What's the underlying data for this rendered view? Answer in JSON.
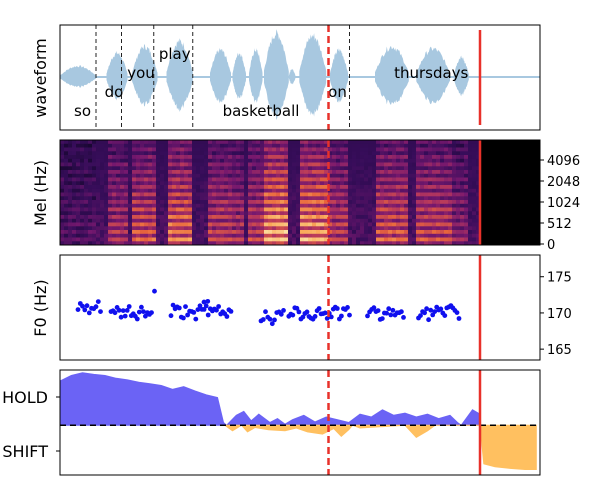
{
  "colors": {
    "waveform": "#a8c8e0",
    "vline_red": "#e8312a",
    "f0_points": "#1010ee",
    "hold_fill": "#6b63f5",
    "shift_fill": "#ffc060",
    "frame": "#000000"
  },
  "words": [
    {
      "text": "so",
      "start": 0.0,
      "end": 0.55
    },
    {
      "text": "do",
      "start": 0.55,
      "end": 0.9
    },
    {
      "text": "you",
      "start": 0.9,
      "end": 1.3
    },
    {
      "text": "play",
      "start": 1.3,
      "end": 1.8
    },
    {
      "text": "basketball",
      "start": 1.8,
      "end": 3.55
    },
    {
      "text": "on",
      "start": 3.55,
      "end": 3.9
    },
    {
      "text": "thursdays",
      "start": 3.9,
      "end": 5.5
    }
  ],
  "chart_data": [
    {
      "type": "line",
      "panel": "waveform",
      "ylabel": "waveform",
      "xlim": [
        0,
        6.4
      ],
      "segments": [
        {
          "start": 0.0,
          "end": 0.48,
          "amp": 0.25
        },
        {
          "start": 0.62,
          "end": 0.9,
          "amp": 0.55
        },
        {
          "start": 0.96,
          "end": 1.3,
          "amp": 0.7
        },
        {
          "start": 1.42,
          "end": 1.77,
          "amp": 0.82
        },
        {
          "start": 2.0,
          "end": 2.28,
          "amp": 0.62
        },
        {
          "start": 2.3,
          "end": 2.48,
          "amp": 0.55
        },
        {
          "start": 2.52,
          "end": 2.7,
          "amp": 0.62
        },
        {
          "start": 2.72,
          "end": 3.05,
          "amp": 1.0
        },
        {
          "start": 3.05,
          "end": 3.14,
          "amp": 0.18
        },
        {
          "start": 3.19,
          "end": 3.55,
          "amp": 0.95
        },
        {
          "start": 3.6,
          "end": 3.84,
          "amp": 0.62
        },
        {
          "start": 4.2,
          "end": 4.65,
          "amp": 0.7
        },
        {
          "start": 4.75,
          "end": 5.2,
          "amp": 0.65
        },
        {
          "start": 5.25,
          "end": 5.45,
          "amp": 0.45
        }
      ],
      "word_boundaries": [
        0.48,
        0.82,
        1.25,
        1.77,
        3.86
      ],
      "current_time": 3.58,
      "end_time": 5.6
    },
    {
      "type": "heatmap",
      "panel": "mel",
      "ylabel": "Mel (Hz)",
      "yticks": [
        "4096",
        "2048",
        "1024",
        "512",
        "0"
      ]
    },
    {
      "type": "scatter",
      "panel": "f0",
      "ylabel": "F0 (Hz)",
      "ylim": [
        163.5,
        178
      ],
      "yticks": [
        "175",
        "170",
        "165"
      ],
      "segments": [
        {
          "start": 0.24,
          "end": 0.54,
          "mean": 170.5
        },
        {
          "start": 0.68,
          "end": 1.22,
          "mean": 170.0
        },
        {
          "start": 1.48,
          "end": 2.28,
          "mean": 170.2
        },
        {
          "start": 2.68,
          "end": 2.98,
          "mean": 169.5
        },
        {
          "start": 3.05,
          "end": 3.86,
          "mean": 170.0
        },
        {
          "start": 4.1,
          "end": 4.58,
          "mean": 170.0
        },
        {
          "start": 4.78,
          "end": 5.32,
          "mean": 170.0
        }
      ],
      "outliers": [
        {
          "x": 1.26,
          "y": 173.0
        },
        {
          "x": 1.92,
          "y": 171.5
        },
        {
          "x": 1.97,
          "y": 171.6
        }
      ]
    },
    {
      "type": "area",
      "panel": "turn_taking",
      "ytick_labels": [
        "HOLD",
        "SHIFT"
      ],
      "hold_series": {
        "x": [
          0.0,
          0.15,
          0.3,
          0.45,
          0.6,
          0.75,
          0.9,
          1.05,
          1.2,
          1.35,
          1.5,
          1.65,
          1.8,
          1.95,
          2.1,
          2.18,
          2.22,
          2.35,
          2.45,
          2.55,
          2.65,
          2.8,
          2.9,
          3.0,
          3.1,
          3.25,
          3.4,
          3.55,
          3.7,
          3.85,
          4.0,
          4.15,
          4.3,
          4.45,
          4.6,
          4.75,
          4.9,
          5.05,
          5.2,
          5.3,
          5.35,
          5.5,
          5.6
        ],
        "y": [
          0.8,
          0.9,
          0.95,
          0.92,
          0.9,
          0.85,
          0.82,
          0.78,
          0.75,
          0.72,
          0.65,
          0.7,
          0.62,
          0.55,
          0.5,
          0.05,
          0.0,
          0.18,
          0.25,
          0.08,
          0.2,
          0.05,
          0.12,
          0.02,
          0.1,
          0.18,
          0.06,
          0.15,
          0.1,
          0.05,
          0.2,
          0.15,
          0.28,
          0.18,
          0.22,
          0.15,
          0.2,
          0.12,
          0.18,
          0.05,
          0.0,
          0.28,
          0.2
        ]
      },
      "shift_series": {
        "x": [
          2.2,
          2.3,
          2.42,
          2.5,
          2.6,
          2.78,
          3.0,
          3.15,
          3.3,
          3.5,
          3.65,
          3.75,
          3.85,
          3.9,
          4.0,
          4.6,
          4.75,
          4.9,
          5.0,
          5.6,
          5.65,
          5.8,
          6.0,
          6.2,
          6.35
        ],
        "y": [
          0.0,
          -0.1,
          0.0,
          -0.12,
          -0.04,
          -0.08,
          -0.1,
          -0.05,
          -0.12,
          -0.16,
          -0.06,
          -0.2,
          -0.08,
          0.0,
          -0.05,
          0.0,
          -0.22,
          -0.1,
          0.0,
          0.0,
          -0.7,
          -0.75,
          -0.78,
          -0.8,
          -0.8
        ]
      },
      "ylim": [
        -0.9,
        1.0
      ],
      "threshold": 0.0
    }
  ]
}
